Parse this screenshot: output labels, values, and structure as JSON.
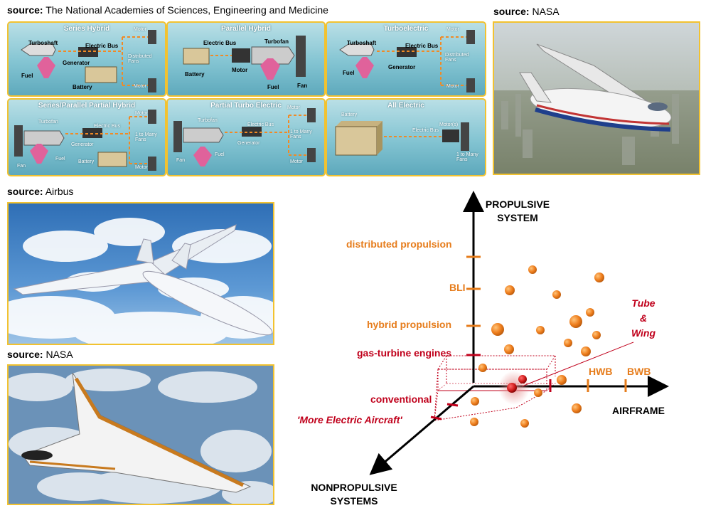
{
  "sources": {
    "prefix": "source:",
    "academies": "The National Academies of Sciences, Engineering and Medicine",
    "nasa_top": "NASA",
    "airbus": "Airbus",
    "nasa_bottom": "NASA"
  },
  "architectures": {
    "series_hybrid": {
      "title": "Series Hybrid",
      "turboshaft": "Turboshaft",
      "electric_bus": "Electric Bus",
      "generator": "Generator",
      "fuel": "Fuel",
      "battery": "Battery",
      "motor_top": "Motor",
      "motor_bottom": "Motor",
      "distributed_fans": "Distributed Fans"
    },
    "parallel_hybrid": {
      "title": "Parallel Hybrid",
      "electric_bus": "Electric Bus",
      "turbofan": "Turbofan",
      "battery": "Battery",
      "motor": "Motor",
      "fuel": "Fuel",
      "fan": "Fan"
    },
    "turboelectric": {
      "title": "Turboelectric",
      "turboshaft": "Turboshaft",
      "electric_bus": "Electric Bus",
      "generator": "Generator",
      "fuel": "Fuel",
      "motor_top": "Motor",
      "motor_bottom": "Motor",
      "distributed_fans": "Distributed Fans"
    },
    "series_parallel": {
      "title": "Series/Parallel Partial Hybrid",
      "turbofan": "Turbofan",
      "electric_bus": "Electric Bus",
      "generator": "Generator",
      "fuel": "Fuel",
      "fan": "Fan",
      "battery": "Battery",
      "motor_top": "Motor",
      "motor_bottom": "Motor",
      "fans": "1 to Many Fans"
    },
    "partial_turbo": {
      "title": "Partial Turbo Electric",
      "turbofan": "Turbofan",
      "electric_bus": "Electric Bus",
      "generator": "Generator",
      "fuel": "Fuel",
      "fan": "Fan",
      "motor_top": "Motor",
      "motor_bottom": "Motor",
      "fans": "1 to Many Fans"
    },
    "all_electric": {
      "title": "All Electric",
      "battery": "Battery",
      "electric_bus": "Electric Bus",
      "motors": "Motor(s)",
      "fans": "1 to Many Fans"
    }
  },
  "chart_data": {
    "type": "scatter",
    "axes": {
      "y": "PROPULSIVE SYSTEM",
      "x": "AIRFRAME",
      "z": "NONPROPULSIVE SYSTEMS"
    },
    "y_ticks": [
      {
        "label": "distributed propulsion",
        "color": "#e67c1b"
      },
      {
        "label": "BLI",
        "color": "#e67c1b"
      },
      {
        "label": "hybrid propulsion",
        "color": "#e67c1b"
      },
      {
        "label": "gas-turbine engines",
        "color": "#c0001b"
      }
    ],
    "x_ticks": [
      {
        "label": "Tube & Wing",
        "color": "#c0001b"
      },
      {
        "label": "HWB",
        "color": "#e67c1b"
      },
      {
        "label": "BWB",
        "color": "#e67c1b"
      }
    ],
    "z_ticks": [
      {
        "label": "conventional",
        "color": "#c0001b"
      },
      {
        "label": "'More Electric Aircraft'",
        "color": "#c0001b"
      }
    ],
    "conventional_point_label": "Tube & Wing",
    "colors": {
      "orange": "#e67c1b",
      "red": "#c0001b"
    }
  }
}
